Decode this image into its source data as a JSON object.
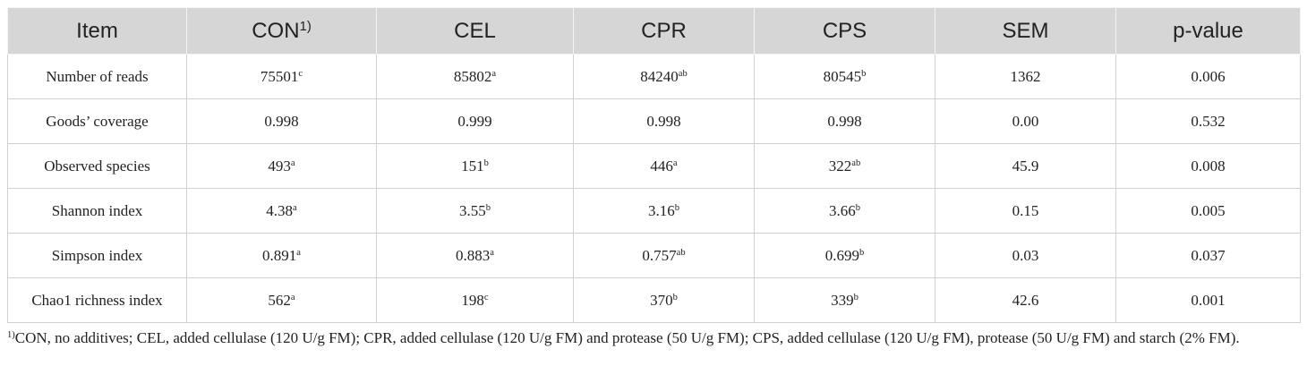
{
  "table": {
    "columns": [
      {
        "label": "Item"
      },
      {
        "label": "CON",
        "sup": "1)"
      },
      {
        "label": "CEL"
      },
      {
        "label": "CPR"
      },
      {
        "label": "CPS"
      },
      {
        "label": "SEM"
      },
      {
        "label": "p-value"
      }
    ],
    "rows": [
      {
        "item": "Number of reads",
        "cells": [
          {
            "value": "75501",
            "sup": "c"
          },
          {
            "value": "85802",
            "sup": "a"
          },
          {
            "value": "84240",
            "sup": "ab"
          },
          {
            "value": "80545",
            "sup": "b"
          },
          {
            "value": "1362"
          },
          {
            "value": "0.006"
          }
        ]
      },
      {
        "item": "Goods’ coverage",
        "cells": [
          {
            "value": "0.998"
          },
          {
            "value": "0.999"
          },
          {
            "value": "0.998"
          },
          {
            "value": "0.998"
          },
          {
            "value": "0.00"
          },
          {
            "value": "0.532"
          }
        ]
      },
      {
        "item": "Observed species",
        "cells": [
          {
            "value": "493",
            "sup": "a"
          },
          {
            "value": "151",
            "sup": "b"
          },
          {
            "value": "446",
            "sup": "a"
          },
          {
            "value": "322",
            "sup": "ab"
          },
          {
            "value": "45.9"
          },
          {
            "value": "0.008"
          }
        ]
      },
      {
        "item": "Shannon index",
        "cells": [
          {
            "value": "4.38",
            "sup": "a"
          },
          {
            "value": "3.55",
            "sup": "b"
          },
          {
            "value": "3.16",
            "sup": "b"
          },
          {
            "value": "3.66",
            "sup": "b"
          },
          {
            "value": "0.15"
          },
          {
            "value": "0.005"
          }
        ]
      },
      {
        "item": "Simpson index",
        "cells": [
          {
            "value": "0.891",
            "sup": "a"
          },
          {
            "value": "0.883",
            "sup": "a"
          },
          {
            "value": "0.757",
            "sup": "ab"
          },
          {
            "value": "0.699",
            "sup": "b"
          },
          {
            "value": "0.03"
          },
          {
            "value": "0.037"
          }
        ]
      },
      {
        "item": "Chao1 richness index",
        "cells": [
          {
            "value": "562",
            "sup": "a"
          },
          {
            "value": "198",
            "sup": "c"
          },
          {
            "value": "370",
            "sup": "b"
          },
          {
            "value": "339",
            "sup": "b"
          },
          {
            "value": "42.6"
          },
          {
            "value": "0.001"
          }
        ]
      }
    ],
    "footnote": {
      "sup": "1)",
      "text": "CON, no additives; CEL, added cellulase (120 U/g FM); CPR, added cellulase (120 U/g FM) and protease (50 U/g FM); CPS, added cellulase (120 U/g FM), protease (50 U/g FM) and starch (2% FM)."
    }
  }
}
